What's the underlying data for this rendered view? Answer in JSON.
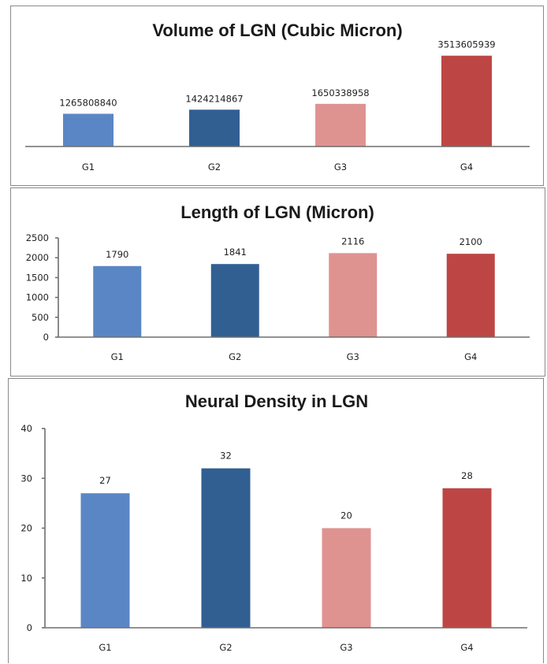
{
  "chart_data": [
    {
      "type": "bar",
      "title": "Volume of LGN (Cubic Micron)",
      "categories": [
        "G1",
        "G2",
        "G3",
        "G4"
      ],
      "values": [
        1265808840,
        1424214867,
        1650338958,
        3513605939
      ],
      "value_labels": [
        "1265808840",
        "1424214867",
        "1650338958",
        "3513605939"
      ],
      "colors": [
        "#5b86c5",
        "#315f92",
        "#df9391",
        "#bd4644"
      ],
      "ylim": [
        0,
        3900000000
      ],
      "y_axis_visible": false,
      "grid": false,
      "legend": "none"
    },
    {
      "type": "bar",
      "title": "Length of LGN (Micron)",
      "categories": [
        "G1",
        "G2",
        "G3",
        "G4"
      ],
      "values": [
        1790,
        1841,
        2116,
        2100
      ],
      "value_labels": [
        "1790",
        "1841",
        "2116",
        "2100"
      ],
      "colors": [
        "#5b86c5",
        "#315f92",
        "#df9391",
        "#bd4644"
      ],
      "ylim": [
        0,
        2500
      ],
      "yticks": [
        0,
        500,
        1000,
        1500,
        2000,
        2500
      ],
      "y_axis_visible": true,
      "grid": false,
      "legend": "none"
    },
    {
      "type": "bar",
      "title": "Neural Density in LGN",
      "categories": [
        "G1",
        "G2",
        "G3",
        "G4"
      ],
      "values": [
        27,
        32,
        20,
        28
      ],
      "value_labels": [
        "27",
        "32",
        "20",
        "28"
      ],
      "colors": [
        "#5b86c5",
        "#315f92",
        "#df9391",
        "#bd4644"
      ],
      "ylim": [
        0,
        40
      ],
      "yticks": [
        0,
        10,
        20,
        30,
        40
      ],
      "y_axis_visible": true,
      "grid": false,
      "legend": "none"
    }
  ]
}
